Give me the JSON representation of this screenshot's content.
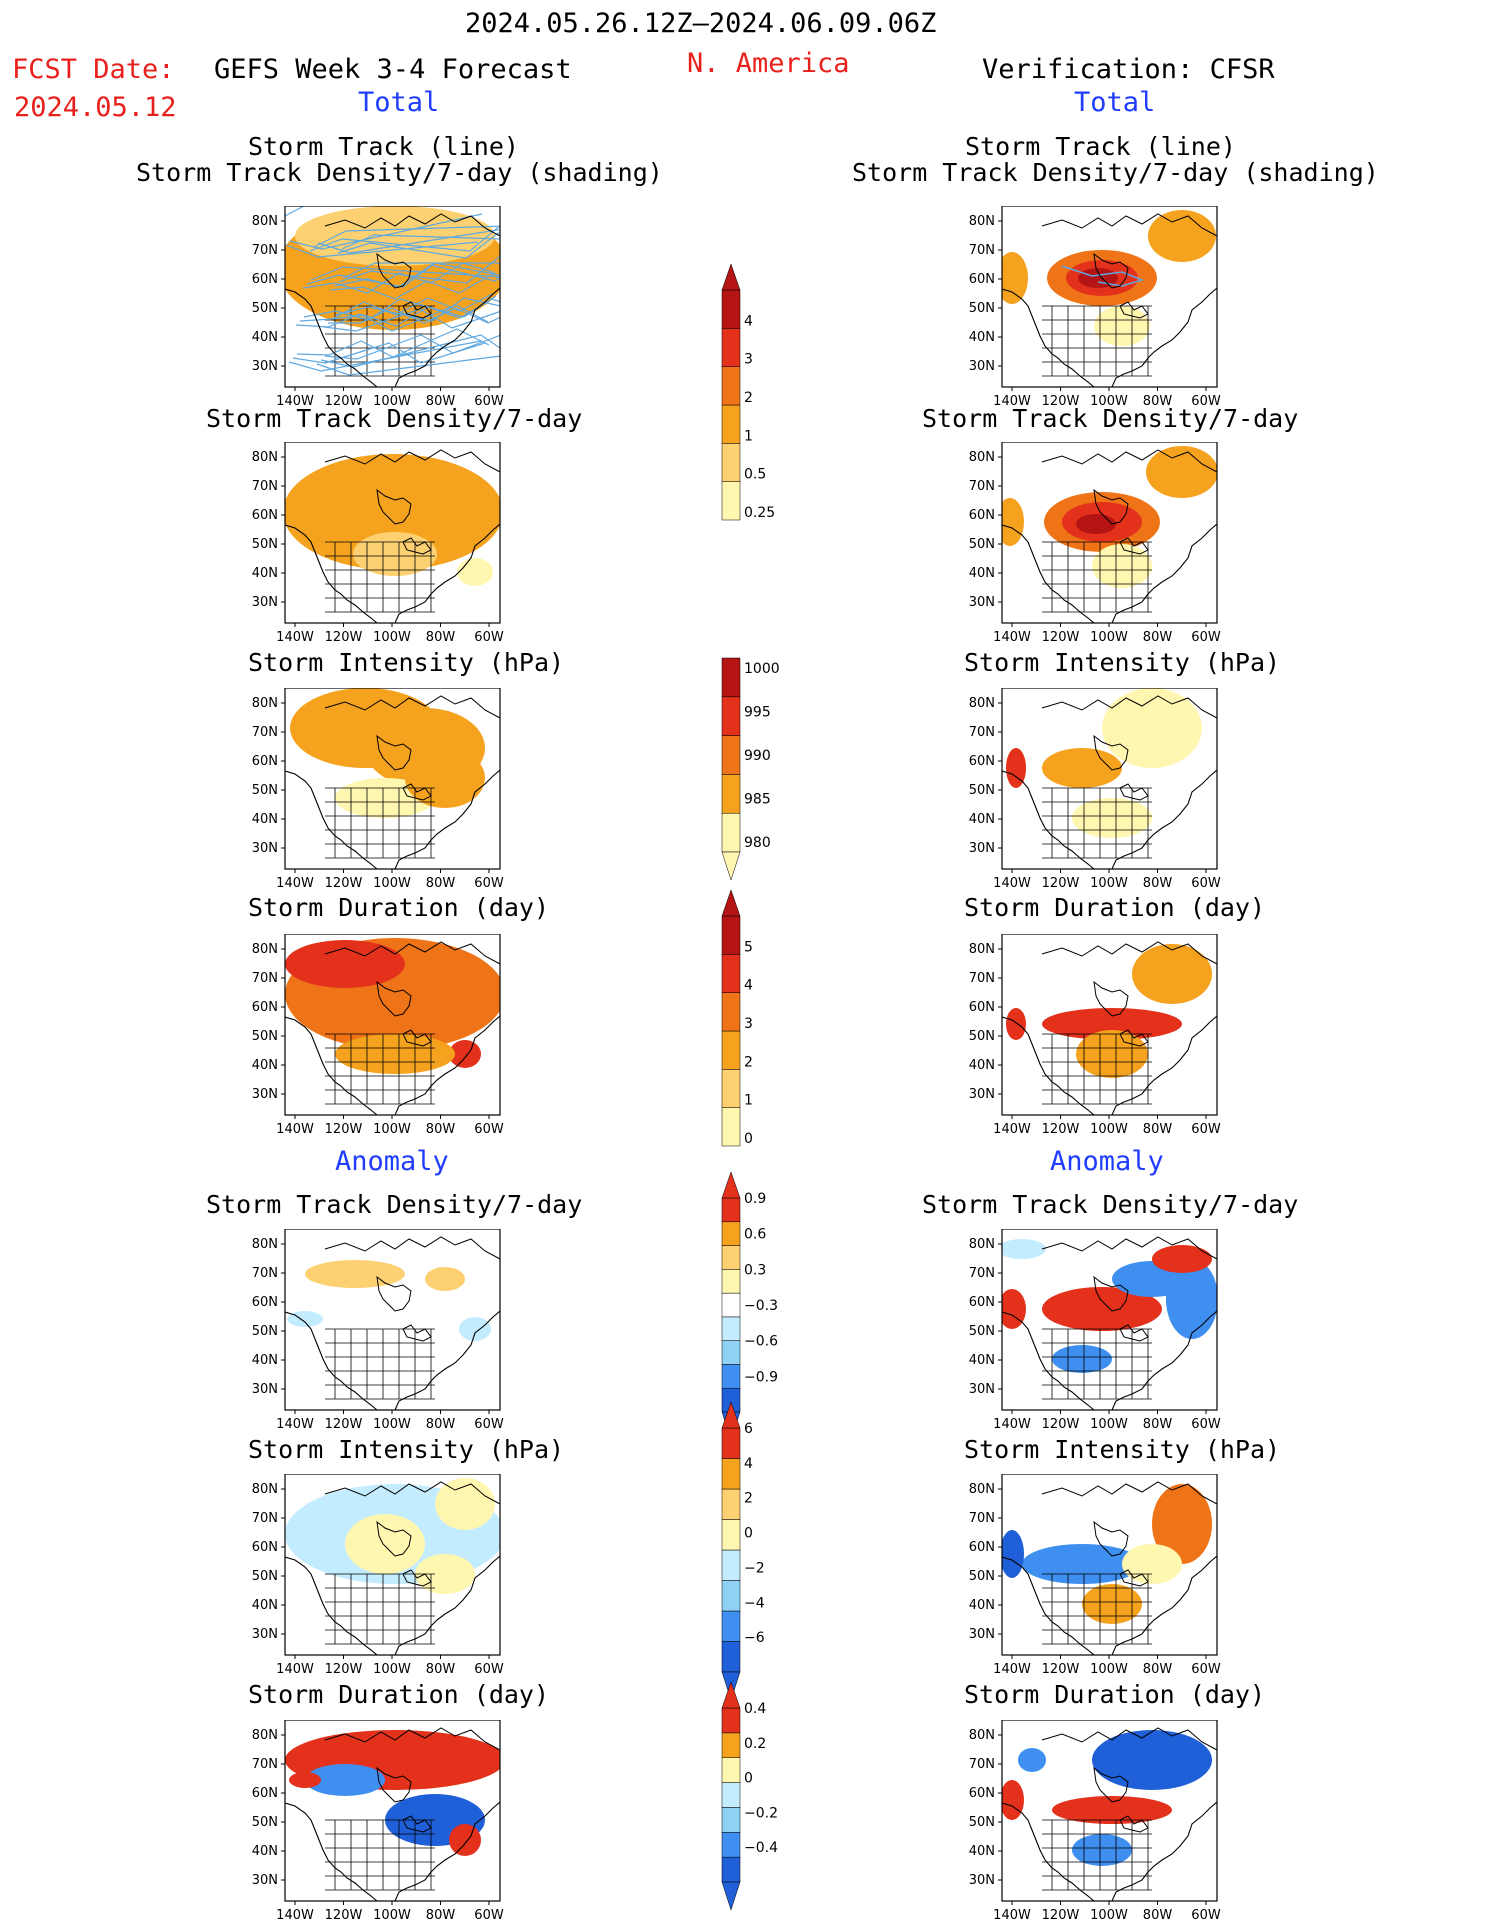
{
  "header": {
    "date_range": "2024.05.26.12Z–2024.06.09.06Z",
    "fcst_label": "FCST Date:",
    "fcst_date": "2024.05.12",
    "left_title": "GEFS Week 3-4 Forecast",
    "region": "N. America",
    "right_title": "Verification: CFSR",
    "total_label": "Total",
    "anomaly_label": "Anomaly"
  },
  "panel_titles": {
    "track_line": "Storm Track (line)",
    "track_shading": "Storm Track Density/7-day (shading)",
    "density": "Storm Track Density/7-day",
    "intensity": "Storm Intensity (hPa)",
    "duration": "Storm Duration (day)"
  },
  "axes": {
    "lat_ticks": [
      "80N",
      "70N",
      "60N",
      "50N",
      "40N",
      "30N"
    ],
    "lon_ticks": [
      "140W",
      "120W",
      "100W",
      "80W",
      "60W"
    ]
  },
  "colorbars": {
    "density_total": [
      "0.25",
      "0.5",
      "1",
      "2",
      "3",
      "4"
    ],
    "intensity_total": [
      "1000",
      "995",
      "990",
      "985",
      "980"
    ],
    "duration_total": [
      "0",
      "1",
      "2",
      "3",
      "4",
      "5"
    ],
    "density_anom": [
      "0.9",
      "0.6",
      "0.3",
      "−0.3",
      "−0.6",
      "−0.9"
    ],
    "intensity_anom": [
      "6",
      "4",
      "2",
      "0",
      "−2",
      "−4",
      "−6"
    ],
    "duration_anom": [
      "0.4",
      "0.2",
      "0",
      "−0.2",
      "−0.4"
    ]
  },
  "colors": {
    "pale": "#fff6b0",
    "lightorange": "#fdd171",
    "orange": "#f5a21e",
    "darkorange": "#ef7418",
    "red": "#e3311c",
    "darkred": "#b51414",
    "lightblue": "#c4ecff",
    "midblue": "#8fd1f5",
    "blue": "#3e8ff0",
    "darkblue": "#1f5fd8",
    "track": "#5fa8e0"
  }
}
